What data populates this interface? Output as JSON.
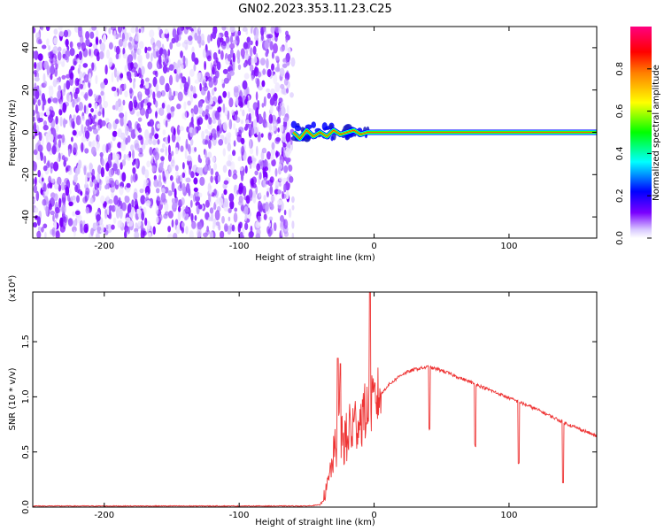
{
  "title": "GN02.2023.353.11.23.C25",
  "chart_data": [
    {
      "type": "heatmap",
      "xlabel": "Height of straight line (km)",
      "ylabel": "Frequency (Hz)",
      "xlim": [
        -253,
        165
      ],
      "ylim": [
        -50,
        50
      ],
      "xticks": [
        -200,
        -100,
        0,
        100
      ],
      "yticks": [
        -40,
        -20,
        0,
        20,
        40
      ],
      "noise_region_x": [
        -253,
        -60
      ],
      "signal_line": {
        "x_start": -60,
        "x_end": 165,
        "frequency": 0,
        "trace_x": [
          -60,
          -55,
          -50,
          -45,
          -40,
          -35,
          -30,
          -25,
          -20,
          -15,
          -10,
          -5,
          0
        ],
        "trace_y": [
          0,
          -3,
          1,
          -2,
          0,
          -2,
          1,
          -1,
          0,
          1,
          -1,
          0,
          0
        ]
      },
      "colorbar": {
        "label": "Normalized spectral amplitude",
        "range": [
          0,
          1
        ],
        "ticks": [
          0.0,
          0.2,
          0.4,
          0.6,
          0.8
        ],
        "colors": [
          "#ffffff",
          "#7a00ff",
          "#0000ff",
          "#00ffff",
          "#00ff00",
          "#ffff00",
          "#ff8000",
          "#ff0000",
          "#ff0080"
        ]
      }
    },
    {
      "type": "line",
      "xlabel": "Height of straight line (km)",
      "ylabel": "SNR (10 * v/v)",
      "y_multiplier": "(x10⁴)",
      "xlim": [
        -253,
        165
      ],
      "ylim": [
        0,
        1.95
      ],
      "xticks": [
        -200,
        -100,
        0,
        100
      ],
      "yticks": [
        0.0,
        0.5,
        1.0,
        1.5
      ],
      "series": [
        {
          "color": "#ee3333",
          "x": [
            -253,
            -200,
            -150,
            -100,
            -50,
            -40,
            -35,
            -30,
            -25,
            -20,
            -15,
            -10,
            -5,
            0,
            5,
            10,
            20,
            30,
            40,
            50,
            60,
            70,
            80,
            90,
            100,
            110,
            120,
            130,
            140,
            150,
            160,
            165
          ],
          "y": [
            0.01,
            0.01,
            0.01,
            0.01,
            0.01,
            0.02,
            0.15,
            0.45,
            0.65,
            0.55,
            0.72,
            0.78,
            0.85,
            0.92,
            1.02,
            1.1,
            1.2,
            1.25,
            1.27,
            1.24,
            1.19,
            1.14,
            1.09,
            1.04,
            0.99,
            0.94,
            0.89,
            0.83,
            0.77,
            0.72,
            0.67,
            0.64
          ]
        }
      ]
    }
  ]
}
